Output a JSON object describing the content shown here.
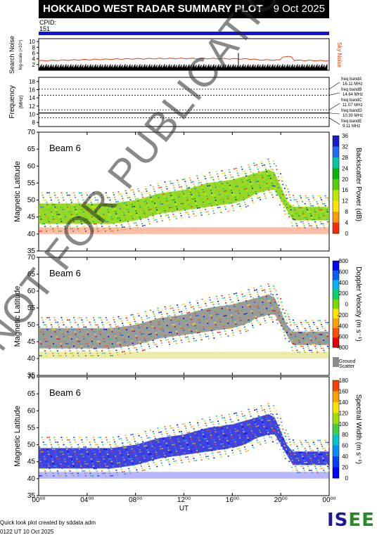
{
  "title": "HOKKAIDO WEST RADAR SUMMARY PLOT",
  "date": "9 Oct 2025",
  "cpid_label": "CPID:",
  "cpid_value": "151",
  "noise_panel": {
    "ylabel": "Search Noise",
    "sublabel": "log-scale (×10⁴)",
    "legend": "Sky Noise",
    "yticks": [
      "2",
      "4",
      "6",
      "8",
      "10"
    ]
  },
  "freq_panel": {
    "ylabel": "Frequency",
    "unit": "(MHz)",
    "yticks": [
      "8",
      "10",
      "12",
      "14",
      "16",
      "18"
    ],
    "bands": [
      {
        "label": "freq bandA",
        "value": "16.11 MHz"
      },
      {
        "label": "freq bandB",
        "value": "14.64 MHz"
      },
      {
        "label": "freq bandC",
        "value": "11.07 MHz"
      },
      {
        "label": "freq bandD",
        "value": "10.30 MHz"
      },
      {
        "label": "freq bandE",
        "value": "9.11 MHz"
      }
    ]
  },
  "panels": [
    {
      "beam": "Beam  6",
      "ylabel": "Magnetic Latitude",
      "cbar_label": "Backscatter Power (dB)",
      "cbar_ticks": [
        "0",
        "4",
        "8",
        "12",
        "16",
        "20",
        "24",
        "28",
        "32",
        "36"
      ]
    },
    {
      "beam": "Beam  6",
      "ylabel": "Magnetic Latitude",
      "cbar_label": "Doppler Velocity (m s⁻¹)",
      "cbar_ticks": [
        "-800",
        "-600",
        "-400",
        "-200",
        "0",
        "200",
        "400",
        "600",
        "800"
      ],
      "ground_label_1": "Ground",
      "ground_label_2": "Scatter"
    },
    {
      "beam": "Beam  6",
      "ylabel": "Magnetic Latitude",
      "cbar_label": "Spectral Width (m s⁻¹)",
      "cbar_ticks": [
        "0",
        "20",
        "40",
        "60",
        "80",
        "100",
        "120",
        "140",
        "160",
        "180"
      ]
    }
  ],
  "lat_ticks": [
    "35",
    "40",
    "45",
    "50",
    "55",
    "60",
    "65",
    "70"
  ],
  "time_ticks": [
    "00⁰⁰",
    "04⁰⁰",
    "08⁰⁰",
    "12⁰⁰",
    "16⁰⁰",
    "20⁰⁰",
    "00⁰⁰"
  ],
  "xlabel": "UT",
  "footer_1": "Quick look plot created by sddata adm",
  "footer_2": "0122 UT 10 Oct 2025",
  "logo": "ISEE",
  "watermark": "NOT FOR PUBLICATION",
  "chart_data": {
    "type": "heatmap",
    "title": "HOKKAIDO WEST RADAR SUMMARY PLOT",
    "x_unit": "UT hours",
    "xlim": [
      0,
      24
    ],
    "ylim": [
      35,
      70
    ],
    "ylabel": "Magnetic Latitude",
    "xlabel": "UT",
    "echo_band": {
      "x": [
        0,
        2,
        4,
        6,
        8,
        10,
        12,
        14,
        16,
        17,
        18,
        19,
        19.5,
        20,
        20.5,
        21,
        22,
        24
      ],
      "lower": [
        43,
        43,
        43,
        43,
        44,
        46,
        47,
        48,
        49,
        50,
        52,
        53,
        53,
        50,
        47,
        44,
        44,
        44
      ],
      "upper": [
        49,
        49,
        49,
        49,
        50,
        52,
        53,
        55,
        56,
        57,
        58,
        59,
        58,
        54,
        50,
        48,
        48,
        48
      ]
    },
    "search_noise_level": 3.5,
    "colorbars": [
      {
        "label": "Backscatter Power (dB)",
        "range": [
          0,
          36
        ]
      },
      {
        "label": "Doppler Velocity (m s⁻¹)",
        "range": [
          -800,
          800
        ]
      },
      {
        "label": "Spectral Width (m s⁻¹)",
        "range": [
          0,
          180
        ]
      }
    ]
  }
}
